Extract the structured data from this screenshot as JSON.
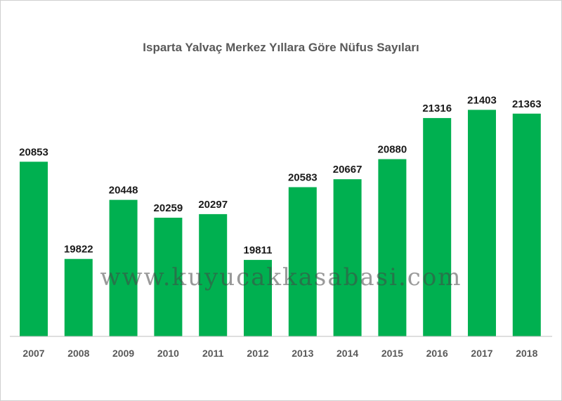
{
  "chart_data": {
    "type": "bar",
    "title": "Isparta Yalvaç Merkez Yıllara Göre Nüfus Sayıları",
    "categories": [
      "2007",
      "2008",
      "2009",
      "2010",
      "2011",
      "2012",
      "2013",
      "2014",
      "2015",
      "2016",
      "2017",
      "2018"
    ],
    "values": [
      20853,
      19822,
      20448,
      20259,
      20297,
      19811,
      20583,
      20667,
      20880,
      21316,
      21403,
      21363
    ],
    "ylim": [
      19000,
      21600
    ],
    "grid": false,
    "legend": "none",
    "bar_color": "#00b050",
    "axis_color": "#bfbfbf"
  },
  "watermark": "www.kuyucakkasabasi.com"
}
